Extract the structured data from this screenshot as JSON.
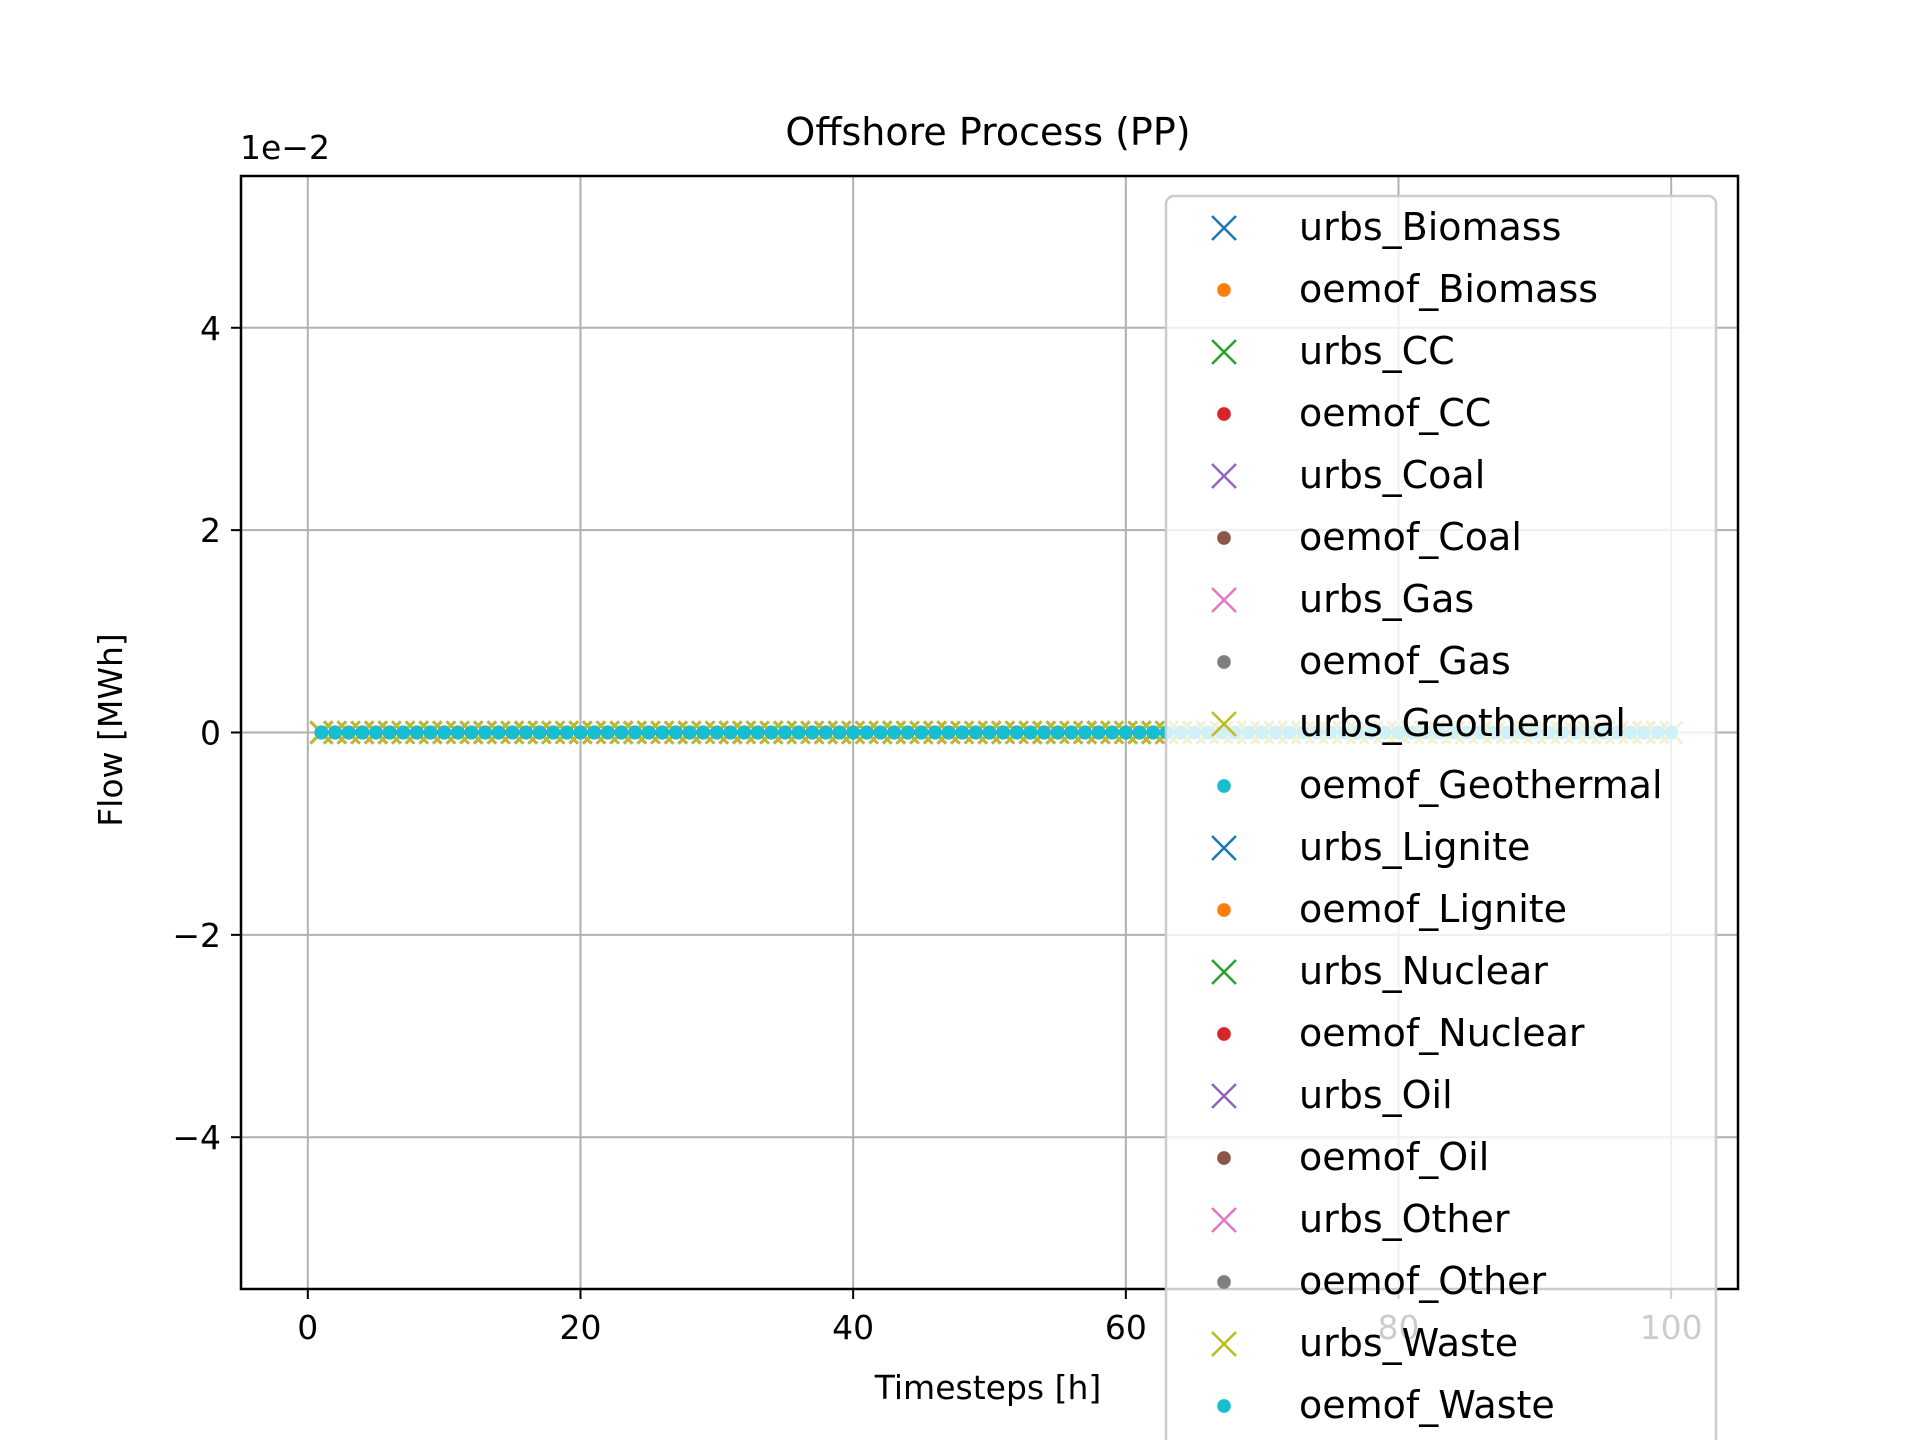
{
  "chart_data": {
    "type": "scatter",
    "title": "Offshore Process (PP)",
    "xlabel": "Timesteps [h]",
    "ylabel": "Flow [MWh]",
    "y_offset_label": "1e−2",
    "xlim": [
      -4.9,
      104.9
    ],
    "ylim": [
      -5.5,
      5.5
    ],
    "xticks": [
      0,
      20,
      40,
      60,
      80,
      100
    ],
    "xtick_labels": [
      "0",
      "20",
      "40",
      "60",
      "80",
      "100"
    ],
    "yticks": [
      -4,
      -2,
      0,
      2,
      4
    ],
    "ytick_labels": [
      "−4",
      "−2",
      "0",
      "2",
      "4"
    ],
    "grid": true,
    "legend_position": "upper right",
    "x": {
      "start": 1,
      "end": 100,
      "step": 1
    },
    "y_constant": 0,
    "series": [
      {
        "name": "urbs_Biomass",
        "marker": "x",
        "color": "#1f77b4",
        "value": 0
      },
      {
        "name": "oemof_Biomass",
        "marker": "dot",
        "color": "#ff7f0e",
        "value": 0
      },
      {
        "name": "urbs_CC",
        "marker": "x",
        "color": "#2ca02c",
        "value": 0
      },
      {
        "name": "oemof_CC",
        "marker": "dot",
        "color": "#d62728",
        "value": 0
      },
      {
        "name": "urbs_Coal",
        "marker": "x",
        "color": "#9467bd",
        "value": 0
      },
      {
        "name": "oemof_Coal",
        "marker": "dot",
        "color": "#8c564b",
        "value": 0
      },
      {
        "name": "urbs_Gas",
        "marker": "x",
        "color": "#e377c2",
        "value": 0
      },
      {
        "name": "oemof_Gas",
        "marker": "dot",
        "color": "#7f7f7f",
        "value": 0
      },
      {
        "name": "urbs_Geothermal",
        "marker": "x",
        "color": "#bcbd22",
        "value": 0
      },
      {
        "name": "oemof_Geothermal",
        "marker": "dot",
        "color": "#17becf",
        "value": 0
      },
      {
        "name": "urbs_Lignite",
        "marker": "x",
        "color": "#1f77b4",
        "value": 0
      },
      {
        "name": "oemof_Lignite",
        "marker": "dot",
        "color": "#ff7f0e",
        "value": 0
      },
      {
        "name": "urbs_Nuclear",
        "marker": "x",
        "color": "#2ca02c",
        "value": 0
      },
      {
        "name": "oemof_Nuclear",
        "marker": "dot",
        "color": "#d62728",
        "value": 0
      },
      {
        "name": "urbs_Oil",
        "marker": "x",
        "color": "#9467bd",
        "value": 0
      },
      {
        "name": "oemof_Oil",
        "marker": "dot",
        "color": "#8c564b",
        "value": 0
      },
      {
        "name": "urbs_Other",
        "marker": "x",
        "color": "#e377c2",
        "value": 0
      },
      {
        "name": "oemof_Other",
        "marker": "dot",
        "color": "#7f7f7f",
        "value": 0
      },
      {
        "name": "urbs_Waste",
        "marker": "x",
        "color": "#bcbd22",
        "value": 0
      },
      {
        "name": "oemof_Waste",
        "marker": "dot",
        "color": "#17becf",
        "value": 0
      }
    ]
  }
}
